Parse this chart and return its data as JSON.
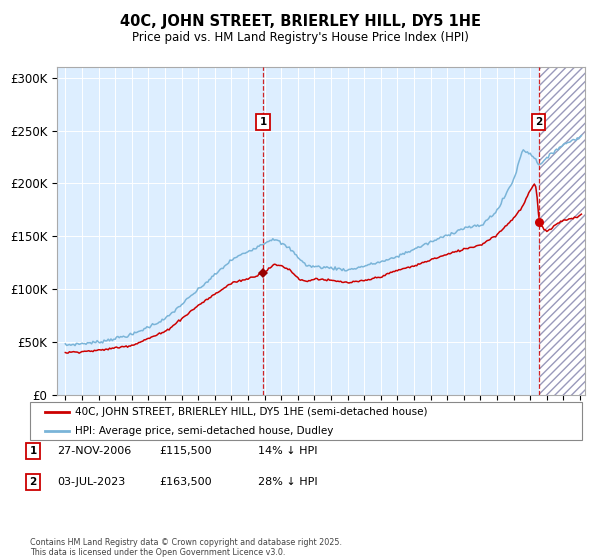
{
  "title": "40C, JOHN STREET, BRIERLEY HILL, DY5 1HE",
  "subtitle": "Price paid vs. HM Land Registry's House Price Index (HPI)",
  "legend_line1": "40C, JOHN STREET, BRIERLEY HILL, DY5 1HE (semi-detached house)",
  "legend_line2": "HPI: Average price, semi-detached house, Dudley",
  "annotation1_date": "27-NOV-2006",
  "annotation1_price": "£115,500",
  "annotation1_hpi": "14% ↓ HPI",
  "annotation2_date": "03-JUL-2023",
  "annotation2_price": "£163,500",
  "annotation2_hpi": "28% ↓ HPI",
  "copyright_text": "Contains HM Land Registry data © Crown copyright and database right 2025.\nThis data is licensed under the Open Government Licence v3.0.",
  "hpi_color": "#7ab4d8",
  "price_color": "#cc0000",
  "background_color": "#ddeeff",
  "vline_color": "#cc0000",
  "ylim": [
    0,
    310000
  ],
  "yticks": [
    0,
    50000,
    100000,
    150000,
    200000,
    250000,
    300000
  ],
  "ytick_labels": [
    "£0",
    "£50K",
    "£100K",
    "£150K",
    "£200K",
    "£250K",
    "£300K"
  ],
  "sale1_x": 2006.92,
  "sale1_y": 115500,
  "sale2_x": 2023.5,
  "sale2_y": 163500,
  "xmin": 1994.5,
  "xmax": 2026.3
}
